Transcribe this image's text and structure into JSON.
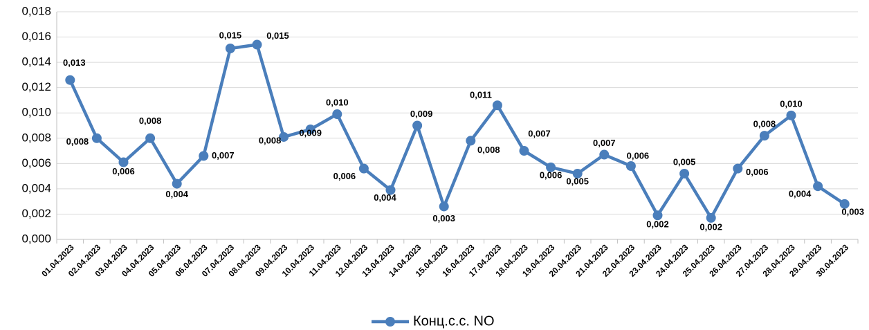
{
  "chart_data": {
    "type": "line",
    "categories": [
      "01.04.2023",
      "02.04.2023",
      "03.04.2023",
      "04.04.2023",
      "05.04.2023",
      "06.04.2023",
      "07.04.2023",
      "08.04.2023",
      "09.04.2023",
      "10.04.2023",
      "11.04.2023",
      "12.04.2023",
      "13.04.2023",
      "14.04.2023",
      "15.04.2023",
      "16.04.2023",
      "17.04.2023",
      "18.04.2023",
      "19.04.2023",
      "20.04.2023",
      "21.04.2023",
      "22.04.2023",
      "23.04.2023",
      "24.04.2023",
      "25.04.2023",
      "26.04.2023",
      "27.04.2023",
      "28.04.2023",
      "29.04.2023",
      "30.04.2023"
    ],
    "series": [
      {
        "name": "Конц.с.с. NO",
        "color": "#4a7ebb",
        "values": [
          0.0126,
          0.008,
          0.0061,
          0.008,
          0.0044,
          0.0066,
          0.0151,
          0.0154,
          0.0081,
          0.0087,
          0.0099,
          0.0056,
          0.0039,
          0.009,
          0.0026,
          0.0078,
          0.0106,
          0.007,
          0.0057,
          0.0052,
          0.0067,
          0.0058,
          0.0019,
          0.0052,
          0.0017,
          0.0056,
          0.0082,
          0.0098,
          0.0042,
          0.0028
        ],
        "value_labels": [
          "0,013",
          "0,008",
          "0,006",
          "0,008",
          "0,004",
          "0,007",
          "0,015",
          "0,015",
          "0,008",
          "0,009",
          "0,010",
          "0,006",
          "0,004",
          "0,009",
          "0,003",
          "0,008",
          "0,011",
          "0,007",
          "0,006",
          "0,005",
          "0,007",
          "0,006",
          "0,002",
          "0,005",
          "0,002",
          "0,006",
          "0,008",
          "0,010",
          "0,004",
          "0,003"
        ]
      }
    ],
    "ylim": [
      0,
      0.018
    ],
    "yticks": [
      {
        "value": 0,
        "label": "0,000"
      },
      {
        "value": 0.002,
        "label": "0,002"
      },
      {
        "value": 0.004,
        "label": "0,004"
      },
      {
        "value": 0.006,
        "label": "0,006"
      },
      {
        "value": 0.008,
        "label": "0,008"
      },
      {
        "value": 0.01,
        "label": "0,010"
      },
      {
        "value": 0.012,
        "label": "0,012"
      },
      {
        "value": 0.014,
        "label": "0,014"
      },
      {
        "value": 0.016,
        "label": "0,016"
      },
      {
        "value": 0.018,
        "label": "0,018"
      }
    ],
    "grid": true,
    "legend": "bottom"
  }
}
